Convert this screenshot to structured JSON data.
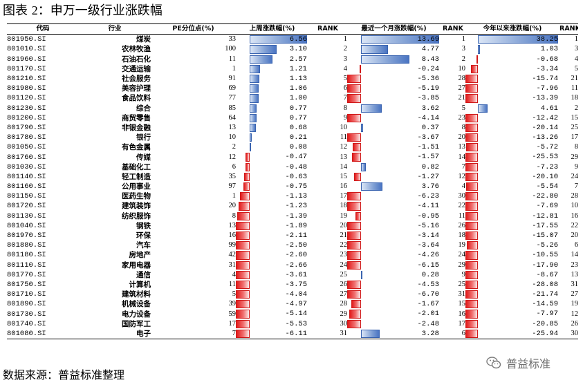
{
  "title_prefix": "图表",
  "title_num": "2",
  "title_text": "：申万一级行业涨跌幅",
  "headers": {
    "code": "代码",
    "industry": "行业",
    "pe": "PE分位点(%)",
    "week": "上周涨跌幅(%)",
    "rank1": "RANK",
    "month": "最近一个月涨跌幅(%)",
    "rank2": "RANK",
    "ytd": "今年以来涨跌幅(%)",
    "rank3": "RANK"
  },
  "rows": [
    [
      "801950.SI",
      "煤炭",
      "33",
      "6.56",
      "1",
      "13.69",
      "1",
      "38.25",
      "1"
    ],
    [
      "801010.SI",
      "农林牧渔",
      "100",
      "3.10",
      "2",
      "4.77",
      "3",
      "1.03",
      "3"
    ],
    [
      "801960.SI",
      "石油石化",
      "11",
      "2.57",
      "3",
      "8.43",
      "2",
      "-0.68",
      "4"
    ],
    [
      "801170.SI",
      "交通运输",
      "1",
      "1.21",
      "4",
      "-0.24",
      "10",
      "-3.34",
      "5"
    ],
    [
      "801210.SI",
      "社会服务",
      "91",
      "1.13",
      "5",
      "-5.36",
      "28",
      "-15.74",
      "21"
    ],
    [
      "801980.SI",
      "美容护理",
      "69",
      "1.06",
      "6",
      "-5.19",
      "27",
      "-7.96",
      "11"
    ],
    [
      "801120.SI",
      "食品饮料",
      "77",
      "1.00",
      "7",
      "-3.85",
      "21",
      "-13.39",
      "18"
    ],
    [
      "801230.SI",
      "综合",
      "85",
      "0.77",
      "8",
      "3.62",
      "5",
      "4.61",
      "2"
    ],
    [
      "801200.SI",
      "商贸零售",
      "64",
      "0.77",
      "9",
      "-4.14",
      "23",
      "-12.42",
      "15"
    ],
    [
      "801790.SI",
      "非银金融",
      "13",
      "0.68",
      "10",
      "0.37",
      "8",
      "-20.14",
      "25"
    ],
    [
      "801780.SI",
      "银行",
      "10",
      "0.21",
      "11",
      "-3.67",
      "20",
      "-13.26",
      "17"
    ],
    [
      "801050.SI",
      "有色金属",
      "2",
      "0.08",
      "12",
      "-1.51",
      "13",
      "-5.72",
      "8"
    ],
    [
      "801760.SI",
      "传媒",
      "12",
      "-0.47",
      "13",
      "-1.57",
      "14",
      "-25.53",
      "29"
    ],
    [
      "801030.SI",
      "基础化工",
      "6",
      "-0.48",
      "14",
      "0.82",
      "7",
      "-7.23",
      "9"
    ],
    [
      "801140.SI",
      "轻工制造",
      "35",
      "-0.63",
      "15",
      "-1.27",
      "12",
      "-20.10",
      "24"
    ],
    [
      "801160.SI",
      "公用事业",
      "97",
      "-0.75",
      "16",
      "3.76",
      "4",
      "-5.54",
      "7"
    ],
    [
      "801150.SI",
      "医药生物",
      "1",
      "-1.13",
      "17",
      "-6.23",
      "30",
      "-22.80",
      "28"
    ],
    [
      "801720.SI",
      "建筑装饰",
      "20",
      "-1.23",
      "18",
      "-4.11",
      "22",
      "-7.69",
      "10"
    ],
    [
      "801130.SI",
      "纺织服饰",
      "8",
      "-1.39",
      "19",
      "-0.95",
      "11",
      "-12.81",
      "16"
    ],
    [
      "801040.SI",
      "钢铁",
      "13",
      "-1.89",
      "20",
      "-5.16",
      "26",
      "-17.55",
      "22"
    ],
    [
      "801970.SI",
      "环保",
      "16",
      "-2.11",
      "21",
      "-3.14",
      "18",
      "-15.07",
      "20"
    ],
    [
      "801880.SI",
      "汽车",
      "99",
      "-2.50",
      "22",
      "-3.64",
      "19",
      "-5.26",
      "6"
    ],
    [
      "801180.SI",
      "房地产",
      "42",
      "-2.60",
      "23",
      "-4.26",
      "24",
      "-10.55",
      "14"
    ],
    [
      "801110.SI",
      "家用电器",
      "31",
      "-2.66",
      "24",
      "-6.15",
      "29",
      "-17.90",
      "23"
    ],
    [
      "801770.SI",
      "通信",
      "4",
      "-3.61",
      "25",
      "0.28",
      "9",
      "-8.67",
      "13"
    ],
    [
      "801750.SI",
      "计算机",
      "11",
      "-3.75",
      "26",
      "-4.53",
      "25",
      "-28.08",
      "31"
    ],
    [
      "801710.SI",
      "建筑材料",
      "5",
      "-4.04",
      "27",
      "-6.70",
      "31",
      "-21.74",
      "27"
    ],
    [
      "801890.SI",
      "机械设备",
      "39",
      "-4.97",
      "28",
      "-1.67",
      "15",
      "-14.59",
      "19"
    ],
    [
      "801730.SI",
      "电力设备",
      "59",
      "-5.14",
      "29",
      "-2.01",
      "16",
      "-7.97",
      "12"
    ],
    [
      "801740.SI",
      "国防军工",
      "17",
      "-5.53",
      "30",
      "-2.48",
      "17",
      "-20.85",
      "26"
    ],
    [
      "801080.SI",
      "电子",
      "7",
      "-6.11",
      "31",
      "3.28",
      "6",
      "-25.94",
      "30"
    ]
  ],
  "source": "数据来源：普益标准整理",
  "watermark": "普益标准",
  "colors": {
    "positive": "#4a74c2",
    "negative": "#e21b1b"
  }
}
